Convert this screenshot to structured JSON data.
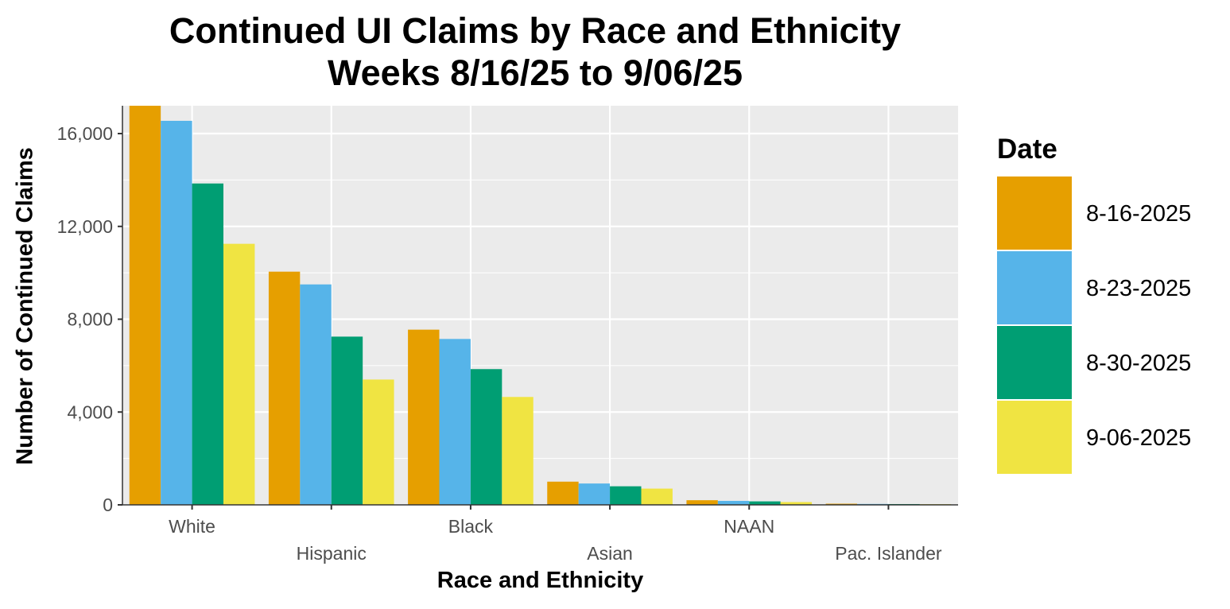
{
  "chart_data": {
    "type": "bar",
    "title": "Continued UI Claims by Race and Ethnicity",
    "subtitle": "Weeks 8/16/25 to 9/06/25",
    "xlabel": "Race and Ethnicity",
    "ylabel": "Number of Continued Claims",
    "categories": [
      "White",
      "Hispanic",
      "Black",
      "Asian",
      "NAAN",
      "Pac. Islander"
    ],
    "ylim": [
      0,
      17200
    ],
    "yticks": [
      0,
      4000,
      8000,
      12000,
      16000
    ],
    "ytick_labels": [
      "0",
      "4,000",
      "8,000",
      "12,000",
      "16,000"
    ],
    "legend_title": "Date",
    "legend_position": "right",
    "grid": true,
    "series": [
      {
        "name": "8-16-2025",
        "color": "#E69F00",
        "values": [
          17200,
          10050,
          7550,
          1000,
          200,
          50
        ]
      },
      {
        "name": "8-23-2025",
        "color": "#56B4E9",
        "values": [
          16550,
          9500,
          7150,
          920,
          170,
          40
        ]
      },
      {
        "name": "8-30-2025",
        "color": "#009E73",
        "values": [
          13850,
          7250,
          5850,
          800,
          150,
          35
        ]
      },
      {
        "name": "9-06-2025",
        "color": "#F0E442",
        "values": [
          11250,
          5400,
          4650,
          700,
          120,
          30
        ]
      }
    ],
    "panel_background": "#EBEBEB"
  }
}
